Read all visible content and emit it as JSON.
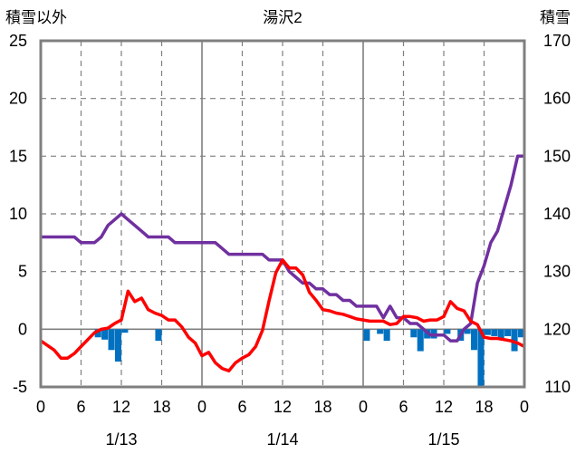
{
  "chart_data": {
    "type": "line",
    "title": "湯沢2",
    "ylabel_left": "積雪以外",
    "ylabel_right": "積雪",
    "ylim_left": [
      -5,
      25
    ],
    "yticks_left": [
      -5,
      0,
      5,
      10,
      15,
      20,
      25
    ],
    "ylim_right": [
      110,
      170
    ],
    "yticks_right": [
      110,
      120,
      130,
      140,
      150,
      160,
      170
    ],
    "xlim_hours": [
      0,
      72
    ],
    "xtick_labels": [
      "0",
      "6",
      "12",
      "18",
      "0",
      "6",
      "12",
      "18",
      "0",
      "6",
      "12",
      "18",
      "0"
    ],
    "date_labels": [
      {
        "hour": 12,
        "label": "1/13"
      },
      {
        "hour": 36,
        "label": "1/14"
      },
      {
        "hour": 60,
        "label": "1/15"
      }
    ],
    "grid": "dashed at 6h multiples, solid at day boundaries",
    "colors": {
      "temperature": "#ff0000",
      "precipitation": "#0070c0",
      "snow_depth": "#7030a0",
      "frame": "#7f7f7f"
    },
    "series": [
      {
        "axis": "left",
        "type": "line",
        "hours": [
          0,
          1,
          2,
          3,
          4,
          5,
          6,
          7,
          8,
          9,
          10,
          11,
          12,
          13,
          14,
          15,
          16,
          17,
          18,
          19,
          20,
          21,
          22,
          23,
          24,
          25,
          26,
          27,
          28,
          29,
          30,
          31,
          32,
          33,
          34,
          35,
          36,
          37,
          38,
          39,
          40,
          41,
          42,
          43,
          44,
          45,
          46,
          47,
          48,
          49,
          50,
          51,
          52,
          53,
          54,
          55,
          56,
          57,
          58,
          59,
          60,
          61,
          62,
          63,
          64,
          65,
          66,
          67,
          68,
          69,
          70,
          71,
          72
        ],
        "values": [
          -1.0,
          -1.4,
          -1.8,
          -2.5,
          -2.5,
          -2.1,
          -1.5,
          -0.9,
          -0.3,
          0.0,
          0.1,
          0.5,
          0.8,
          3.3,
          2.4,
          2.7,
          1.7,
          1.4,
          1.2,
          0.8,
          0.8,
          0.2,
          -0.7,
          -1.2,
          -2.3,
          -2.0,
          -2.9,
          -3.4,
          -3.6,
          -2.9,
          -2.5,
          -2.2,
          -1.5,
          -0.1,
          2.5,
          4.9,
          6.0,
          5.3,
          5.3,
          4.7,
          3.2,
          2.5,
          1.7,
          1.6,
          1.4,
          1.3,
          1.1,
          0.9,
          0.8,
          0.7,
          0.7,
          0.7,
          0.4,
          0.5,
          1.1,
          1.1,
          1.0,
          0.7,
          0.8,
          0.8,
          1.1,
          2.4,
          1.8,
          1.6,
          0.7,
          0.4,
          -0.7,
          -0.8,
          -0.8,
          -0.9,
          -1.0,
          -1.2,
          -1.5
        ]
      },
      {
        "axis": "left",
        "type": "bar",
        "hours": [
          9,
          10,
          11,
          12,
          13,
          18,
          49,
          51,
          52,
          56,
          57,
          58,
          59,
          61,
          63,
          64,
          65,
          66,
          67,
          68,
          69,
          70,
          71,
          72
        ],
        "values": [
          -0.7,
          -0.9,
          -1.8,
          -2.8,
          -0.3,
          -1.0,
          -1.0,
          -0.4,
          -1.0,
          -0.7,
          -1.9,
          -0.8,
          -0.8,
          -0.4,
          -1.0,
          -0.4,
          -1.8,
          -4.9,
          -0.5,
          -0.6,
          -0.9,
          -0.6,
          -1.9,
          -0.7
        ]
      },
      {
        "axis": "right",
        "type": "line",
        "hours": [
          0,
          1,
          2,
          3,
          4,
          5,
          6,
          7,
          8,
          9,
          10,
          11,
          12,
          13,
          14,
          15,
          16,
          17,
          18,
          19,
          20,
          21,
          22,
          23,
          24,
          25,
          26,
          27,
          28,
          29,
          30,
          31,
          32,
          33,
          34,
          35,
          36,
          37,
          38,
          39,
          40,
          41,
          42,
          43,
          44,
          45,
          46,
          47,
          48,
          49,
          50,
          51,
          52,
          53,
          54,
          55,
          56,
          57,
          58,
          59,
          60,
          61,
          62,
          63,
          64,
          65,
          66,
          67,
          68,
          69,
          70,
          71,
          72
        ],
        "values": [
          136,
          136,
          136,
          136,
          136,
          136,
          135,
          135,
          135,
          136,
          138,
          139,
          140,
          139,
          138,
          137,
          136,
          136,
          136,
          136,
          135,
          135,
          135,
          135,
          135,
          135,
          135,
          134,
          133,
          133,
          133,
          133,
          133,
          133,
          132,
          132,
          132,
          130,
          129,
          128,
          128,
          127,
          127,
          126,
          126,
          125,
          125,
          124,
          124,
          124,
          124,
          122,
          124,
          122,
          122,
          121,
          121,
          120,
          119,
          119,
          119,
          118,
          118,
          120,
          121,
          128,
          131,
          135,
          137,
          141,
          145,
          150,
          150
        ]
      }
    ]
  }
}
